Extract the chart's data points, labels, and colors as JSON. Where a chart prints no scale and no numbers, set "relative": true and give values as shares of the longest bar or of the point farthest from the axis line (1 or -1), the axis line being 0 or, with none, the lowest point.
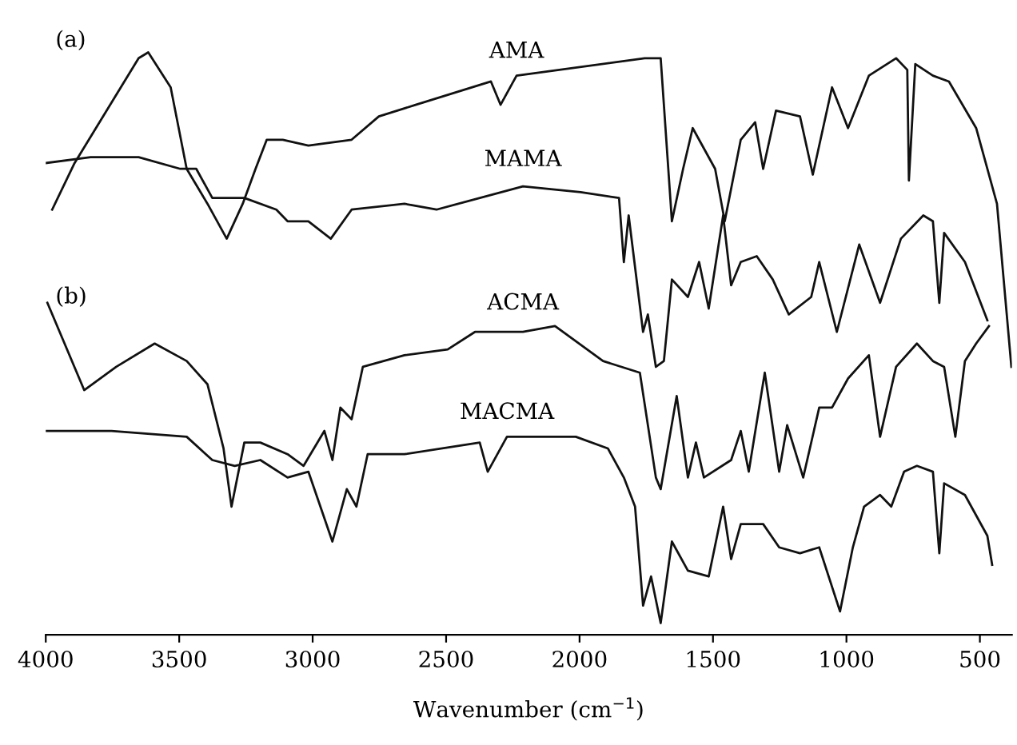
{
  "chart_data": {
    "type": "line",
    "relative": true,
    "xlabel": "Wavenumber (cm$^{−1}$)",
    "xlim": [
      4000,
      380
    ],
    "xticks": [
      4000,
      3500,
      3000,
      2500,
      2000,
      1500,
      1000,
      500
    ],
    "annotations": [
      "(a)",
      "(b)"
    ],
    "grid": false,
    "legend": false,
    "marker": "none",
    "line_style": "solid",
    "tick_labels": "x",
    "series": [
      {
        "name": "AMA",
        "color": "#111111",
        "x": [
          3976,
          3892,
          3652,
          3616,
          3532,
          3472,
          3394,
          3322,
          3262,
          3214,
          3172,
          3112,
          3016,
          2854,
          2752,
          2614,
          2332,
          2296,
          2236,
          1756,
          1696,
          1654,
          1612,
          1576,
          1492,
          1456,
          1396,
          1342,
          1312,
          1264,
          1174,
          1126,
          1054,
          994,
          916,
          814,
          772,
          766,
          742,
          676,
          616,
          514,
          436,
          382
        ],
        "values": [
          0.73,
          0.81,
          0.99,
          1.0,
          0.94,
          0.8,
          0.74,
          0.68,
          0.74,
          0.8,
          0.85,
          0.85,
          0.84,
          0.85,
          0.89,
          0.91,
          0.95,
          0.91,
          0.96,
          0.99,
          0.99,
          0.71,
          0.8,
          0.87,
          0.8,
          0.71,
          0.85,
          0.88,
          0.8,
          0.9,
          0.89,
          0.79,
          0.94,
          0.87,
          0.96,
          0.99,
          0.97,
          0.78,
          0.98,
          0.96,
          0.95,
          0.87,
          0.74,
          0.46
        ]
      },
      {
        "name": "MAMA",
        "color": "#111111",
        "x": [
          4000,
          3832,
          3652,
          3496,
          3436,
          3376,
          3256,
          3136,
          3094,
          3016,
          2932,
          2854,
          2656,
          2536,
          2212,
          1996,
          1852,
          1834,
          1816,
          1762,
          1744,
          1714,
          1684,
          1654,
          1594,
          1552,
          1516,
          1462,
          1432,
          1396,
          1336,
          1276,
          1216,
          1132,
          1102,
          1036,
          952,
          874,
          796,
          712,
          676,
          652,
          634,
          556,
          472
        ],
        "values": [
          0.81,
          0.82,
          0.82,
          0.8,
          0.8,
          0.75,
          0.75,
          0.73,
          0.71,
          0.71,
          0.68,
          0.73,
          0.74,
          0.73,
          0.77,
          0.76,
          0.75,
          0.64,
          0.72,
          0.52,
          0.55,
          0.46,
          0.47,
          0.61,
          0.58,
          0.64,
          0.56,
          0.72,
          0.6,
          0.64,
          0.65,
          0.61,
          0.55,
          0.58,
          0.64,
          0.52,
          0.67,
          0.57,
          0.68,
          0.72,
          0.71,
          0.57,
          0.69,
          0.64,
          0.54
        ]
      },
      {
        "name": "ACMA",
        "color": "#111111",
        "x": [
          3994,
          3856,
          3736,
          3592,
          3472,
          3394,
          3334,
          3304,
          3256,
          3196,
          3094,
          3034,
          2956,
          2926,
          2896,
          2854,
          2812,
          2656,
          2494,
          2392,
          2212,
          2092,
          1912,
          1774,
          1714,
          1696,
          1636,
          1594,
          1564,
          1534,
          1432,
          1396,
          1366,
          1306,
          1252,
          1222,
          1162,
          1102,
          1054,
          994,
          916,
          874,
          814,
          736,
          676,
          634,
          592,
          556,
          514,
          466
        ],
        "values": [
          0.57,
          0.42,
          0.46,
          0.5,
          0.47,
          0.43,
          0.32,
          0.22,
          0.33,
          0.33,
          0.31,
          0.29,
          0.35,
          0.3,
          0.39,
          0.37,
          0.46,
          0.48,
          0.49,
          0.52,
          0.52,
          0.53,
          0.47,
          0.45,
          0.27,
          0.25,
          0.41,
          0.27,
          0.33,
          0.27,
          0.3,
          0.35,
          0.28,
          0.45,
          0.28,
          0.36,
          0.27,
          0.39,
          0.39,
          0.44,
          0.48,
          0.34,
          0.46,
          0.5,
          0.47,
          0.46,
          0.34,
          0.47,
          0.5,
          0.53
        ]
      },
      {
        "name": "MACMA",
        "color": "#111111",
        "x": [
          4000,
          3754,
          3472,
          3376,
          3292,
          3196,
          3094,
          3016,
          2926,
          2872,
          2836,
          2794,
          2656,
          2374,
          2344,
          2272,
          2014,
          1894,
          1834,
          1792,
          1762,
          1732,
          1696,
          1654,
          1594,
          1516,
          1462,
          1432,
          1396,
          1312,
          1252,
          1174,
          1102,
          1024,
          976,
          934,
          874,
          832,
          784,
          736,
          676,
          652,
          634,
          556,
          472,
          454
        ],
        "values": [
          0.35,
          0.35,
          0.34,
          0.3,
          0.29,
          0.3,
          0.27,
          0.28,
          0.16,
          0.25,
          0.22,
          0.31,
          0.31,
          0.33,
          0.28,
          0.34,
          0.34,
          0.32,
          0.27,
          0.22,
          0.05,
          0.1,
          0.02,
          0.16,
          0.11,
          0.1,
          0.22,
          0.13,
          0.19,
          0.19,
          0.15,
          0.14,
          0.15,
          0.04,
          0.15,
          0.22,
          0.24,
          0.22,
          0.28,
          0.29,
          0.28,
          0.14,
          0.26,
          0.24,
          0.17,
          0.12
        ]
      }
    ]
  }
}
